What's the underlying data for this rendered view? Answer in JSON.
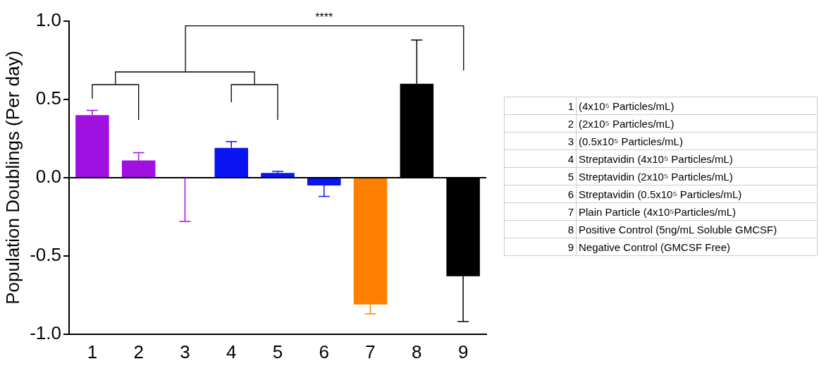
{
  "chart_data": {
    "type": "bar",
    "ylabel": "Population Doublings (Per day)",
    "categories": [
      "1",
      "2",
      "3",
      "4",
      "5",
      "6",
      "7",
      "8",
      "9"
    ],
    "values": [
      0.4,
      0.11,
      0,
      0.19,
      0.03,
      -0.05,
      -0.81,
      0.6,
      -0.63
    ],
    "errors": [
      [
        0.4,
        0.43
      ],
      [
        0.11,
        0.16
      ],
      [
        -0.28,
        0
      ],
      [
        0.19,
        0.23
      ],
      [
        0.03,
        0.04
      ],
      [
        -0.12,
        -0.05
      ],
      [
        -0.87,
        -0.81
      ],
      [
        0.6,
        0.88
      ],
      [
        -0.92,
        -0.63
      ]
    ],
    "colors": [
      "#a010e0",
      "#a010e0",
      "#a010e0",
      "#0a14f0",
      "#0a14f0",
      "#0a14f0",
      "#ff8000",
      "#000000",
      "#000000"
    ],
    "ylim": [
      -1,
      1
    ],
    "yticks": [
      {
        "value": -1,
        "label": "-1.0"
      },
      {
        "value": -0.5,
        "label": "-0.5"
      },
      {
        "value": 0,
        "label": "0.0"
      },
      {
        "value": 0.5,
        "label": "0.5"
      },
      {
        "value": 1,
        "label": "1.0"
      }
    ],
    "ref_lines": [
      {
        "axis": "y",
        "value": 0,
        "color": "#000000"
      }
    ],
    "grid": false,
    "legend": false,
    "annotations": [
      "****",
      "(4x10⁵ Particles/mL)",
      "(2x10⁵ Particles/mL)",
      "(0.5x10⁵ Particles/mL)",
      "Streptavidin (4x10⁵ Particles/mL)",
      "Streptavidin (2x10⁵ Particles/mL)",
      "Streptavidin (0.5x10⁵ Particles/mL)",
      "Plain Particle (4x10⁵Particles/mL)",
      "Positive Control (5ng/mL Soluble GMCSF)",
      "Negative Control (GMCSF Free)"
    ]
  }
}
